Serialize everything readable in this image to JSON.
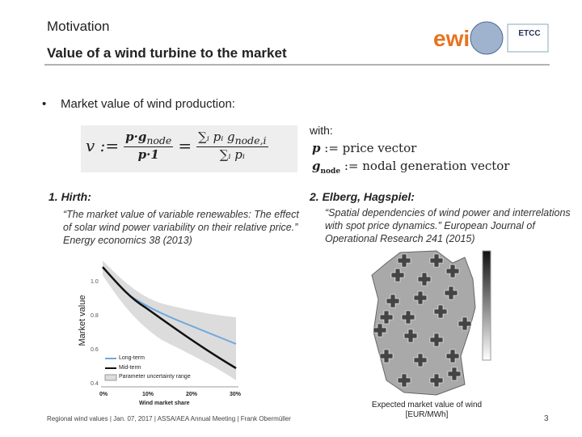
{
  "header": {
    "section": "Motivation",
    "title": "Value of a wind turbine to the market",
    "logo_text": "ewi",
    "logo_badge": "ETCC"
  },
  "bullet": "Market value of wind production:",
  "formula": {
    "lhs": "v :=",
    "frac1_num": "p·g",
    "frac1_num_sub": "node",
    "frac1_den": "p·1",
    "eq": "=",
    "frac2_num": "∑ᵢ pᵢ g",
    "frac2_num_sub": "node,i",
    "frac2_den": "∑ᵢ pᵢ"
  },
  "definitions": {
    "with": "with:",
    "items": [
      {
        "symbol": "p",
        "def": ":= price vector"
      },
      {
        "symbol": "g",
        "sub": "node",
        "def": ":= nodal generation vector"
      }
    ]
  },
  "references": [
    {
      "label": "1. Hirth:",
      "citation": "“The market value of variable renewables: The effect of solar wind power variability on their relative price.” Energy economics 38 (2013)"
    },
    {
      "label": "2. Elberg, Hagspiel:",
      "citation": "“Spatial dependencies of wind power and interrelations with spot price dynamics.” European Journal of Operational Research 241 (2015)"
    }
  ],
  "hirth_figure": {
    "y_label": "Market value",
    "y_ticks": [
      "1.0",
      "0.8",
      "0.6",
      "0.4"
    ],
    "x_ticks": [
      "0%",
      "10%",
      "20%",
      "30%"
    ],
    "x_label": "Wind market share",
    "legend": [
      "Long-term",
      "Mid-term",
      "Parameter uncertainty range"
    ]
  },
  "map_figure": {
    "caption": "Expected market value of wind [EUR/MWh]"
  },
  "footer": {
    "text": "Regional wind values | Jan. 07, 2017 | ASSA/AEA Annual Meeting | Frank Obermüller",
    "page": "3"
  }
}
